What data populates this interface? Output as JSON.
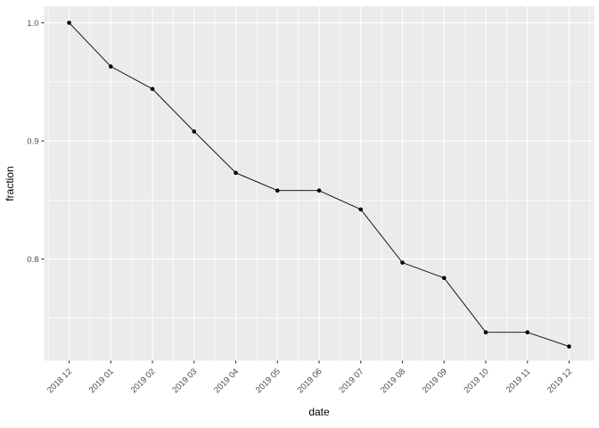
{
  "figure": {
    "background": "#ffffff",
    "panel_background": "#ebebeb",
    "grid_color": "#ffffff",
    "axis_text_color": "#4d4d4d",
    "axis_title_color": "#000000",
    "tick_color": "#333333",
    "series_color": "#000000"
  },
  "chart_data": {
    "type": "line",
    "title": "",
    "xlabel": "date",
    "ylabel": "fraction",
    "categories": [
      "2018 12",
      "2019 01",
      "2019 02",
      "2019 03",
      "2019 04",
      "2019 05",
      "2019 06",
      "2019 07",
      "2019 08",
      "2019 09",
      "2019 10",
      "2019 11",
      "2019 12"
    ],
    "values": [
      1.0,
      0.963,
      0.944,
      0.908,
      0.873,
      0.858,
      0.858,
      0.842,
      0.797,
      0.784,
      0.738,
      0.738,
      0.726
    ],
    "marker": "point",
    "grid": true,
    "legend_position": "none",
    "y_major_ticks": [
      0.8,
      0.9,
      1.0
    ],
    "y_major_tick_labels": [
      "0.8",
      "0.9",
      "1.0"
    ],
    "y_minor_ticks": [
      0.75,
      0.85,
      0.95
    ],
    "ylim": [
      0.714,
      1.014
    ],
    "x_axis_label_angle": -45
  }
}
